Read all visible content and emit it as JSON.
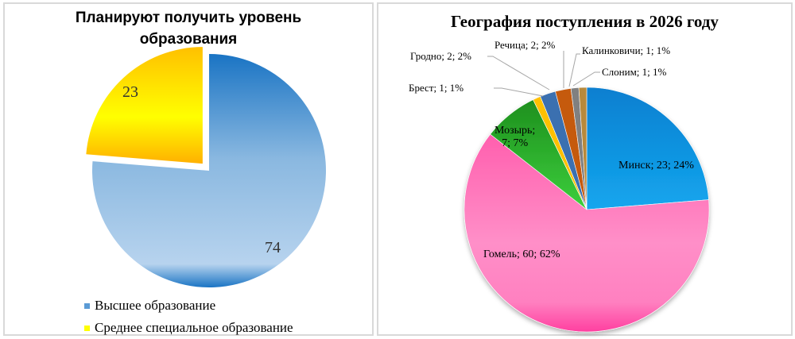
{
  "left_chart": {
    "title_line1": "Планируют получить уровень",
    "title_line2": "образования",
    "legend": [
      {
        "label": "Высшее образование",
        "color": "#5b9bd5"
      },
      {
        "label": "Среднее специальное образование",
        "color": "#ffff00"
      }
    ],
    "labels": {
      "higher": "74",
      "secondary": "23"
    }
  },
  "right_chart": {
    "title": "География поступления в 2026 году",
    "labels": {
      "minsk": "Минск; 23; 24%",
      "gomel": "Гомель; 60; 62%",
      "mozyr_1": "Мозырь;",
      "mozyr_2": "7; 7%",
      "brest": "Брест; 1; 1%",
      "grodno": "Гродно; 2; 2%",
      "rechitsa": "Речица; 2; 2%",
      "kalinkovichi": "Калинковичи; 1; 1%",
      "slonim": "Слоним; 1; 1%"
    }
  },
  "chart_data": [
    {
      "type": "pie",
      "title": "Планируют получить уровень образования",
      "categories": [
        "Высшее образование",
        "Среднее специальное образование"
      ],
      "values": [
        74,
        23
      ],
      "colors": [
        "#5b9bd5",
        "#ffd700"
      ],
      "exploded": [
        "Среднее специальное образование"
      ],
      "legend_position": "bottom"
    },
    {
      "type": "pie",
      "title": "География поступления в 2026 году",
      "categories": [
        "Минск",
        "Гомель",
        "Мозырь",
        "Брест",
        "Гродно",
        "Речица",
        "Калинковичи",
        "Слоним"
      ],
      "values": [
        23,
        60,
        7,
        1,
        2,
        2,
        1,
        1
      ],
      "percentages": [
        24,
        62,
        7,
        1,
        2,
        2,
        1,
        1
      ],
      "colors": [
        "#1a9de0",
        "#ff7fbf",
        "#33b233",
        "#ffc000",
        "#3a6fb0",
        "#c55a11",
        "#808080",
        "#b8893a"
      ],
      "data_labels": "category; value; percentage",
      "legend_position": "none"
    }
  ]
}
